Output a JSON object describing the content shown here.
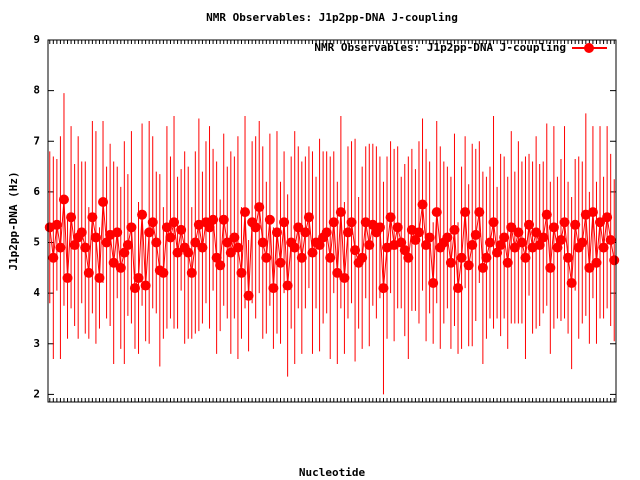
{
  "chart_data": {
    "type": "errorline",
    "title": "NMR Observables: J1p2pp-DNA J-coupling",
    "x_label": "Nucleotide",
    "y_label": "J1p2pp-DNA (Hz)",
    "ylim": [
      1.85,
      9
    ],
    "yticks": [
      2,
      3,
      4,
      5,
      6,
      7,
      8,
      9
    ],
    "grid": false,
    "legend": "top-right",
    "categories": [
      null,
      null,
      null,
      null,
      null,
      null,
      null,
      null,
      null,
      null,
      null,
      null,
      null,
      null,
      null,
      null,
      null,
      null,
      null,
      null,
      null,
      null,
      null,
      null,
      null,
      null,
      null,
      null,
      null,
      null,
      null,
      null,
      null,
      null,
      null,
      null,
      null,
      null,
      null,
      null,
      null,
      null,
      null,
      null,
      null,
      null,
      null,
      null,
      null,
      null,
      null,
      null,
      null,
      null,
      null,
      null,
      null,
      null,
      null,
      null,
      null,
      null,
      null,
      null,
      null,
      null,
      null,
      null,
      null,
      null,
      null,
      null,
      null,
      null,
      null,
      null,
      null,
      null,
      null,
      null,
      null,
      null,
      null,
      null,
      null,
      null,
      null,
      null,
      null,
      null,
      null,
      null,
      null,
      null,
      null,
      null,
      null,
      null,
      null,
      null,
      null,
      null,
      null,
      null,
      null,
      null,
      null,
      null,
      null,
      null,
      null,
      null,
      null,
      null,
      null,
      null,
      null,
      null,
      null,
      null,
      null,
      null,
      null,
      null,
      null,
      null,
      null,
      null,
      null,
      null,
      null,
      null,
      null,
      null,
      null,
      null,
      null,
      null,
      null,
      null,
      null,
      null,
      null,
      null,
      null,
      null,
      null,
      null,
      null,
      null,
      null,
      null,
      null,
      null,
      null,
      null,
      null,
      null,
      null,
      null
    ],
    "series": [
      {
        "name": "NMR Observables: J1p2pp-DNA J-coupling",
        "color": "#ff0000",
        "values": [
          5.3,
          4.7,
          5.35,
          4.9,
          5.85,
          4.3,
          5.5,
          4.95,
          5.1,
          5.2,
          4.9,
          4.4,
          5.5,
          5.1,
          4.3,
          5.8,
          5.0,
          5.15,
          4.6,
          5.2,
          4.5,
          4.8,
          4.95,
          5.3,
          4.1,
          4.3,
          5.55,
          4.15,
          5.2,
          5.4,
          5.0,
          4.45,
          4.4,
          5.3,
          5.1,
          5.4,
          4.8,
          5.25,
          4.9,
          4.8,
          4.4,
          5.0,
          5.35,
          4.9,
          5.4,
          5.3,
          5.45,
          4.7,
          4.55,
          5.45,
          5.0,
          4.8,
          5.1,
          4.9,
          4.4,
          5.6,
          3.95,
          5.4,
          5.3,
          5.7,
          5.0,
          4.7,
          5.45,
          4.1,
          5.2,
          4.6,
          5.4,
          4.15,
          5.0,
          4.9,
          5.3,
          4.7,
          5.2,
          5.5,
          4.8,
          5.0,
          4.95,
          5.1,
          5.2,
          4.7,
          5.4,
          4.4,
          5.6,
          4.3,
          5.2,
          5.4,
          4.85,
          4.6,
          4.7,
          5.4,
          4.95,
          5.35,
          5.2,
          5.3,
          4.1,
          4.9,
          5.5,
          4.95,
          5.3,
          5.0,
          4.85,
          4.7,
          5.25,
          5.05,
          5.2,
          5.75,
          4.95,
          5.1,
          4.2,
          5.6,
          4.9,
          5.0,
          5.1,
          4.6,
          5.25,
          4.1,
          4.7,
          5.6,
          4.55,
          4.95,
          5.15,
          5.6,
          4.5,
          4.7,
          5.0,
          5.4,
          4.8,
          4.95,
          5.1,
          4.6,
          5.3,
          4.9,
          5.2,
          5.0,
          4.7,
          5.35,
          4.9,
          5.2,
          4.95,
          5.1,
          5.55,
          4.5,
          5.3,
          4.9,
          5.05,
          5.4,
          4.7,
          4.2,
          5.35,
          4.9,
          5.0,
          5.55,
          4.5,
          5.6,
          4.6,
          5.4,
          4.9,
          5.5,
          5.05,
          4.65
        ],
        "errors": [
          1.5,
          2.0,
          1.3,
          2.2,
          2.1,
          1.2,
          1.8,
          1.6,
          2.0,
          1.4,
          1.7,
          1.3,
          1.9,
          2.1,
          1.0,
          1.6,
          1.5,
          1.8,
          2.0,
          1.3,
          1.6,
          2.2,
          1.4,
          1.9,
          1.2,
          1.5,
          1.8,
          1.1,
          2.2,
          1.7,
          1.4,
          1.9,
          1.3,
          2.0,
          1.6,
          2.1,
          1.5,
          1.2,
          1.9,
          1.7,
          1.3,
          1.8,
          2.1,
          1.5,
          1.6,
          2.0,
          1.4,
          1.9,
          1.3,
          1.7,
          1.5,
          2.0,
          1.6,
          2.2,
          1.3,
          1.9,
          1.1,
          1.6,
          1.8,
          1.7,
          1.9,
          1.5,
          1.7,
          1.2,
          2.0,
          1.6,
          1.4,
          1.8,
          1.7,
          2.3,
          1.6,
          1.9,
          1.5,
          1.4,
          2.0,
          1.3,
          2.1,
          1.7,
          1.6,
          2.0,
          1.4,
          1.8,
          1.9,
          1.5,
          1.7,
          1.6,
          2.2,
          1.3,
          1.8,
          1.5,
          2.0,
          1.6,
          1.7,
          1.4,
          2.1,
          1.8,
          1.5,
          1.9,
          1.6,
          1.3,
          1.7,
          2.0,
          1.6,
          1.4,
          1.8,
          1.7,
          1.9,
          1.5,
          1.2,
          1.8,
          2.0,
          1.6,
          1.4,
          1.7,
          1.9,
          1.3,
          1.8,
          1.5,
          1.6,
          2.0,
          1.7,
          1.4,
          1.9,
          1.6,
          1.5,
          2.1,
          1.3,
          1.8,
          1.6,
          1.7,
          1.9,
          1.5,
          1.8,
          1.6,
          2.0,
          1.4,
          1.7,
          1.9,
          1.6,
          1.5,
          1.8,
          1.7,
          2.0,
          1.4,
          1.6,
          1.9,
          1.5,
          1.7,
          1.3,
          1.8,
          1.6,
          2.0,
          1.5,
          1.7,
          1.6,
          1.9,
          1.4,
          1.8,
          1.7,
          1.6
        ]
      }
    ]
  }
}
